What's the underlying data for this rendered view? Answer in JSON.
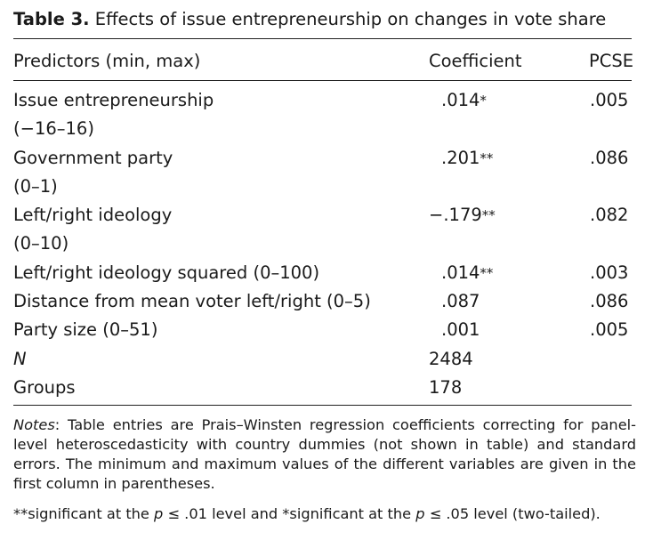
{
  "caption": {
    "label": "Table 3.",
    "title": "Effects of issue entrepreneurship on changes in vote share"
  },
  "headers": {
    "predictors": "Predictors (min, max)",
    "coefficient": "Coefficient",
    "pcse": "PCSE"
  },
  "rows": [
    {
      "name": "Issue entrepreneurship",
      "range": "(−16–16)",
      "coef": ".014",
      "stars": "*",
      "pcse": ".005"
    },
    {
      "name": "Government party",
      "range": "(0–1)",
      "coef": ".201",
      "stars": "**",
      "pcse": ".086"
    },
    {
      "name": "Left/right ideology",
      "range": "(0–10)",
      "coef": "−.179",
      "stars": "**",
      "pcse": ".082"
    },
    {
      "name": "Left/right ideology squared (0–100)",
      "range": "",
      "coef": ".014",
      "stars": "**",
      "pcse": ".003"
    },
    {
      "name": "Distance from mean voter left/right (0–5)",
      "range": "",
      "coef": ".087",
      "stars": "",
      "pcse": ".086"
    },
    {
      "name": "Party size (0–51)",
      "range": "",
      "coef": ".001",
      "stars": "",
      "pcse": ".005"
    }
  ],
  "summary": [
    {
      "name": "N",
      "value": "2484"
    },
    {
      "name": "Groups",
      "value": "178"
    }
  ],
  "notes": {
    "lead": "Notes",
    "text": ": Table entries are Prais–Winsten regression coefficients correcting for panel-level heteroscedasticity with country dummies (not shown in table) and standard errors. The minimum and maximum values of the different variables are given in the first column in parentheses."
  },
  "significance": {
    "part1": "**significant at the ",
    "p1": "p",
    "part2": " ≤ .01 level and *significant at the ",
    "p2": "p",
    "part3": " ≤ .05 level (two-tailed)."
  }
}
